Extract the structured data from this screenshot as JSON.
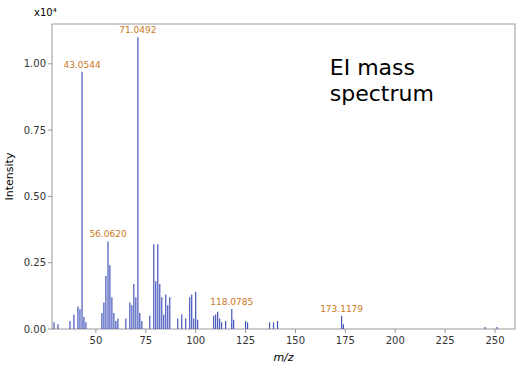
{
  "chart_data": {
    "type": "bar",
    "title": "EI mass\nspectrum",
    "xlabel": "m/z",
    "ylabel": "Intensity",
    "y_unit": "x10⁴",
    "color": "#4455bb",
    "x": [
      29.0,
      31.0,
      37.0,
      39.0,
      41.0,
      42.0,
      43.0544,
      44.0,
      45.0,
      53.0,
      54.0,
      55.0,
      56.062,
      57.0,
      58.0,
      59.0,
      60.0,
      61.0,
      65.0,
      67.0,
      68.0,
      69.0,
      70.0,
      71.0492,
      72.0,
      73.0,
      77.0,
      79.0,
      80.0,
      81.0,
      82.0,
      83.0,
      84.0,
      85.0,
      86.0,
      87.0,
      91.0,
      93.0,
      95.0,
      97.0,
      98.0,
      99.0,
      100.0,
      101.0,
      109.0,
      110.0,
      111.0,
      112.0,
      113.0,
      115.0,
      118.0785,
      119.0,
      125.0,
      126.0,
      137.0,
      139.0,
      141.0,
      173.1179,
      174.0,
      245.0,
      251.0
    ],
    "values": [
      0.025,
      0.018,
      0.03,
      0.055,
      0.085,
      0.075,
      0.97,
      0.045,
      0.025,
      0.06,
      0.1,
      0.2,
      0.33,
      0.24,
      0.12,
      0.06,
      0.03,
      0.04,
      0.04,
      0.1,
      0.09,
      0.17,
      0.12,
      1.1,
      0.06,
      0.03,
      0.05,
      0.32,
      0.18,
      0.32,
      0.17,
      0.12,
      0.055,
      0.13,
      0.09,
      0.12,
      0.04,
      0.055,
      0.04,
      0.12,
      0.13,
      0.04,
      0.14,
      0.035,
      0.05,
      0.055,
      0.065,
      0.04,
      0.025,
      0.03,
      0.075,
      0.035,
      0.03,
      0.025,
      0.025,
      0.025,
      0.03,
      0.05,
      0.018,
      0.008,
      0.008
    ],
    "annotations": [
      {
        "text": "43.0544",
        "x": 43.0544,
        "y": 0.97,
        "color": "#cc7722"
      },
      {
        "text": "56.0620",
        "x": 56.062,
        "y": 0.33,
        "color": "#cc7722"
      },
      {
        "text": "71.0492",
        "x": 71.0492,
        "y": 1.1,
        "color": "#cc7722"
      },
      {
        "text": "118.0785",
        "x": 118.0785,
        "y": 0.075,
        "color": "#cc7722"
      },
      {
        "text": "173.1179",
        "x": 173.1179,
        "y": 0.05,
        "color": "#cc7722"
      }
    ],
    "xlim": [
      28,
      260
    ],
    "ylim": [
      0.0,
      1.15
    ],
    "xticks": [
      50,
      75,
      100,
      125,
      150,
      175,
      200,
      225,
      250
    ],
    "yticks": [
      {
        "value": 0.0,
        "label": "0.00"
      },
      {
        "value": 0.25,
        "label": "0.25"
      },
      {
        "value": 0.5,
        "label": "0.50"
      },
      {
        "value": 0.75,
        "label": "0.75"
      },
      {
        "value": 1.0,
        "label": "1.00"
      }
    ]
  }
}
